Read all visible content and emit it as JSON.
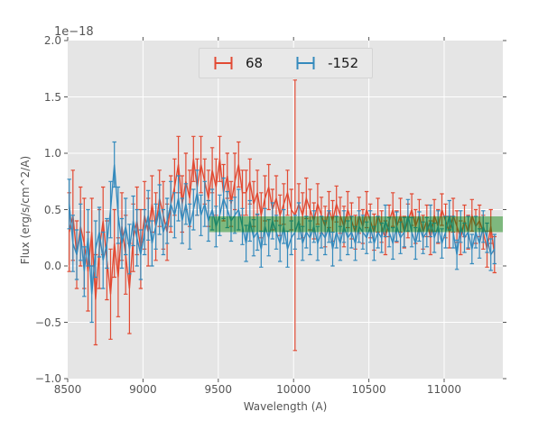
{
  "colors": {
    "figure_bg": "#ffffff",
    "plot_bg": "#e5e5e5",
    "grid": "#ffffff",
    "tick": "#555555",
    "text": "#555555",
    "legend_bg": "#e8e8e8",
    "legend_border": "#d4d4d4",
    "series_red": "#e24a33",
    "series_blue": "#348abd",
    "band_green": "#008000"
  },
  "chart_data": {
    "type": "line",
    "subtype": "errorbar-spectrum",
    "title": "",
    "xlabel": "Wavelength (A)",
    "ylabel": "Flux (erg/s/cm^2/A)",
    "y_offset": "1e−18",
    "xlim": [
      8500,
      11390
    ],
    "ylim": [
      -1.0,
      2.0
    ],
    "grid": true,
    "legend_position": "upper center",
    "xticks": [
      8500,
      9000,
      9500,
      10000,
      10500,
      11000
    ],
    "xtick_labels": [
      "8500",
      "9000",
      "9500",
      "10000",
      "10500",
      "11000"
    ],
    "yticks": [
      -1.0,
      -0.5,
      0.0,
      0.5,
      1.0,
      1.5,
      2.0
    ],
    "ytick_labels": [
      "−1.0",
      "−0.5",
      "0.0",
      "0.5",
      "1.0",
      "1.5",
      "2.0"
    ],
    "band": {
      "kind": "axhspan",
      "x0": 9440,
      "x1": 11390,
      "y0": 0.3,
      "y1": 0.44,
      "color": "#008000",
      "opacity": 0.45
    },
    "x": [
      8510,
      8535,
      8560,
      8585,
      8610,
      8635,
      8660,
      8685,
      8710,
      8735,
      8760,
      8785,
      8810,
      8835,
      8860,
      8885,
      8910,
      8935,
      8960,
      8985,
      9010,
      9035,
      9060,
      9085,
      9110,
      9135,
      9160,
      9185,
      9210,
      9235,
      9260,
      9285,
      9310,
      9335,
      9360,
      9385,
      9410,
      9435,
      9460,
      9485,
      9510,
      9535,
      9560,
      9585,
      9610,
      9635,
      9660,
      9685,
      9710,
      9735,
      9760,
      9785,
      9810,
      9835,
      9860,
      9885,
      9910,
      9935,
      9960,
      9985,
      10010,
      10035,
      10060,
      10085,
      10110,
      10135,
      10160,
      10185,
      10210,
      10235,
      10260,
      10285,
      10310,
      10335,
      10360,
      10385,
      10410,
      10435,
      10460,
      10485,
      10510,
      10535,
      10560,
      10585,
      10610,
      10635,
      10660,
      10685,
      10710,
      10735,
      10760,
      10785,
      10810,
      10835,
      10860,
      10885,
      10910,
      10935,
      10960,
      10985,
      11010,
      11035,
      11060,
      11085,
      11110,
      11135,
      11160,
      11185,
      11210,
      11235,
      11260,
      11285,
      11310,
      11335
    ],
    "series": [
      {
        "name": "68",
        "color": "#e24a33",
        "y": [
          0.3,
          0.45,
          0.1,
          0.35,
          0.2,
          -0.05,
          0.3,
          -0.3,
          0.15,
          0.4,
          0.05,
          -0.25,
          0.2,
          -0.1,
          0.35,
          0.1,
          -0.2,
          0.25,
          0.4,
          0.15,
          0.45,
          0.3,
          0.55,
          0.35,
          0.6,
          0.45,
          0.3,
          0.55,
          0.7,
          0.9,
          0.55,
          0.75,
          0.6,
          0.95,
          0.7,
          0.9,
          0.75,
          0.6,
          0.85,
          0.7,
          0.95,
          0.65,
          0.8,
          0.55,
          0.75,
          0.9,
          0.65,
          0.65,
          0.75,
          0.55,
          0.65,
          0.45,
          0.6,
          0.7,
          0.5,
          0.6,
          0.45,
          0.55,
          0.65,
          0.5,
          0.45,
          0.55,
          0.45,
          0.6,
          0.5,
          0.4,
          0.55,
          0.45,
          0.35,
          0.5,
          0.4,
          0.55,
          0.45,
          0.35,
          0.5,
          0.4,
          0.3,
          0.45,
          0.35,
          0.5,
          0.4,
          0.3,
          0.45,
          0.35,
          0.25,
          0.4,
          0.5,
          0.35,
          0.45,
          0.3,
          0.4,
          0.5,
          0.35,
          0.45,
          0.3,
          0.4,
          0.25,
          0.45,
          0.35,
          0.5,
          0.4,
          0.3,
          0.45,
          0.35,
          0.25,
          0.4,
          0.3,
          0.45,
          0.35,
          0.4,
          0.3,
          0.15,
          0.35,
          0.1
        ],
        "yerr": [
          0.35,
          0.4,
          0.3,
          0.35,
          0.4,
          0.35,
          0.3,
          0.4,
          0.35,
          0.3,
          0.35,
          0.4,
          0.3,
          0.35,
          0.3,
          0.35,
          0.4,
          0.3,
          0.3,
          0.35,
          0.3,
          0.3,
          0.25,
          0.3,
          0.25,
          0.3,
          0.25,
          0.25,
          0.25,
          0.25,
          0.25,
          0.25,
          0.25,
          0.2,
          0.25,
          0.25,
          0.2,
          0.25,
          0.2,
          0.25,
          0.2,
          0.25,
          0.2,
          0.2,
          0.25,
          0.2,
          0.2,
          0.2,
          0.2,
          0.2,
          0.2,
          0.2,
          0.2,
          0.2,
          0.18,
          0.2,
          0.18,
          0.18,
          0.2,
          0.18,
          1.2,
          0.18,
          0.2,
          0.18,
          0.18,
          0.16,
          0.18,
          0.16,
          0.18,
          0.16,
          0.18,
          0.16,
          0.16,
          0.18,
          0.16,
          0.16,
          0.15,
          0.16,
          0.15,
          0.16,
          0.15,
          0.16,
          0.15,
          0.14,
          0.15,
          0.14,
          0.15,
          0.14,
          0.15,
          0.14,
          0.15,
          0.14,
          0.15,
          0.14,
          0.15,
          0.14,
          0.15,
          0.14,
          0.15,
          0.14,
          0.15,
          0.14,
          0.15,
          0.14,
          0.15,
          0.14,
          0.15,
          0.14,
          0.15,
          0.14,
          0.15,
          0.16,
          0.15,
          0.16
        ]
      },
      {
        "name": "-152",
        "color": "#348abd",
        "y": [
          0.55,
          0.2,
          0.1,
          0.3,
          -0.05,
          0.25,
          -0.25,
          0.15,
          0.3,
          0.05,
          0.2,
          0.5,
          0.9,
          0.45,
          0.2,
          0.35,
          0.15,
          0.4,
          0.25,
          0.1,
          0.3,
          0.45,
          0.2,
          0.35,
          0.5,
          0.3,
          0.4,
          0.55,
          0.45,
          0.6,
          0.4,
          0.55,
          0.35,
          0.5,
          0.65,
          0.45,
          0.55,
          0.4,
          0.5,
          0.35,
          0.45,
          0.6,
          0.5,
          0.4,
          0.45,
          0.5,
          0.35,
          0.2,
          0.4,
          0.25,
          0.3,
          0.15,
          0.35,
          0.25,
          0.4,
          0.3,
          0.2,
          0.35,
          0.15,
          0.25,
          0.3,
          0.4,
          0.2,
          0.3,
          0.25,
          0.35,
          0.2,
          0.3,
          0.25,
          0.35,
          0.15,
          0.3,
          0.2,
          0.35,
          0.25,
          0.3,
          0.2,
          0.35,
          0.3,
          0.25,
          0.35,
          0.2,
          0.3,
          0.25,
          0.4,
          0.3,
          0.2,
          0.35,
          0.25,
          0.3,
          0.45,
          0.3,
          0.2,
          0.35,
          0.25,
          0.3,
          0.4,
          0.25,
          0.35,
          0.2,
          0.3,
          0.45,
          0.3,
          0.1,
          0.35,
          0.25,
          0.3,
          0.15,
          0.3,
          0.2,
          0.35,
          0.25,
          0.1,
          0.15
        ],
        "yerr": [
          0.22,
          0.25,
          0.22,
          0.25,
          0.22,
          0.25,
          0.25,
          0.25,
          0.22,
          0.25,
          0.22,
          0.25,
          0.2,
          0.25,
          0.22,
          0.25,
          0.22,
          0.22,
          0.25,
          0.22,
          0.2,
          0.22,
          0.2,
          0.2,
          0.22,
          0.2,
          0.2,
          0.2,
          0.2,
          0.2,
          0.2,
          0.18,
          0.2,
          0.18,
          0.2,
          0.18,
          0.2,
          0.18,
          0.18,
          0.18,
          0.18,
          0.18,
          0.16,
          0.18,
          0.16,
          0.18,
          0.16,
          0.16,
          0.18,
          0.16,
          0.16,
          0.16,
          0.16,
          0.16,
          0.16,
          0.15,
          0.16,
          0.15,
          0.16,
          0.15,
          0.15,
          0.16,
          0.15,
          0.14,
          0.15,
          0.14,
          0.15,
          0.14,
          0.15,
          0.14,
          0.15,
          0.14,
          0.15,
          0.14,
          0.15,
          0.14,
          0.15,
          0.14,
          0.15,
          0.14,
          0.14,
          0.15,
          0.14,
          0.13,
          0.14,
          0.13,
          0.14,
          0.13,
          0.14,
          0.13,
          0.14,
          0.13,
          0.14,
          0.13,
          0.14,
          0.13,
          0.14,
          0.13,
          0.14,
          0.13,
          0.14,
          0.13,
          0.14,
          0.13,
          0.14,
          0.13,
          0.14,
          0.13,
          0.14,
          0.13,
          0.14,
          0.13,
          0.14,
          0.13
        ]
      }
    ]
  },
  "legend": {
    "entries": [
      {
        "label": "68",
        "marker": "errorbar",
        "color": "#e24a33"
      },
      {
        "label": "-152",
        "marker": "errorbar",
        "color": "#348abd"
      }
    ]
  }
}
